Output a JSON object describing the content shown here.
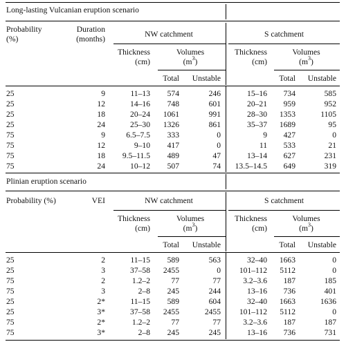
{
  "section1": {
    "title": "Long-lasting Vulcanian eruption scenario",
    "headers": {
      "probability_l1": "Probability",
      "probability_l2": "(%)",
      "duration_l1": "Duration",
      "duration_l2": "(months)",
      "nw": "NW catchment",
      "s": "S catchment",
      "thickness_l1": "Thickness",
      "thickness_l2": "(cm)",
      "volumes_l1": "Volumes",
      "volumes_l2_base": "(m",
      "volumes_l2_sup": "3",
      "volumes_l2_end": ")",
      "total": "Total",
      "unstable": "Unstable"
    },
    "rows": [
      [
        "25",
        "9",
        "11–13",
        "574",
        "246",
        "15–16",
        "734",
        "585"
      ],
      [
        "25",
        "12",
        "14–16",
        "748",
        "601",
        "20–21",
        "959",
        "952"
      ],
      [
        "25",
        "18",
        "20–24",
        "1061",
        "991",
        "28–30",
        "1353",
        "1105"
      ],
      [
        "25",
        "24",
        "25–30",
        "1326",
        "861",
        "35–37",
        "1689",
        "95"
      ],
      [
        "75",
        "9",
        "6.5–7.5",
        "333",
        "0",
        "9",
        "427",
        "0"
      ],
      [
        "75",
        "12",
        "9–10",
        "417",
        "0",
        "11",
        "533",
        "21"
      ],
      [
        "75",
        "18",
        "9.5–11.5",
        "489",
        "47",
        "13–14",
        "627",
        "231"
      ],
      [
        "75",
        "24",
        "10–12",
        "507",
        "74",
        "13.5–14.5",
        "649",
        "319"
      ]
    ]
  },
  "section2": {
    "title": "Plinian eruption scenario",
    "headers": {
      "probability": "Probability (%)",
      "vei": "VEI",
      "nw": "NW catchment",
      "s": "S catchment",
      "thickness_l1": "Thickness",
      "thickness_l2": "(cm)",
      "volumes_l1": "Volumes",
      "volumes_l2_base": "(m",
      "volumes_l2_sup": "3",
      "volumes_l2_end": ")",
      "total": "Total",
      "unstable": "Unstable"
    },
    "rows": [
      [
        "25",
        "2",
        "11–15",
        "589",
        "563",
        "32–40",
        "1663",
        "0"
      ],
      [
        "25",
        "3",
        "37–58",
        "2455",
        "0",
        "101–112",
        "5112",
        "0"
      ],
      [
        "75",
        "2",
        "1.2–2",
        "77",
        "77",
        "3.2–3.6",
        "187",
        "185"
      ],
      [
        "75",
        "3",
        "2–8",
        "245",
        "244",
        "13–16",
        "736",
        "401"
      ],
      [
        "25",
        "2*",
        "11–15",
        "589",
        "604",
        "32–40",
        "1663",
        "1636"
      ],
      [
        "25",
        "3*",
        "37–58",
        "2455",
        "2455",
        "101–112",
        "5112",
        "0"
      ],
      [
        "75",
        "2*",
        "1.2–2",
        "77",
        "77",
        "3.2–3.6",
        "187",
        "187"
      ],
      [
        "75",
        "3*",
        "2–8",
        "245",
        "245",
        "13–16",
        "736",
        "731"
      ]
    ]
  }
}
